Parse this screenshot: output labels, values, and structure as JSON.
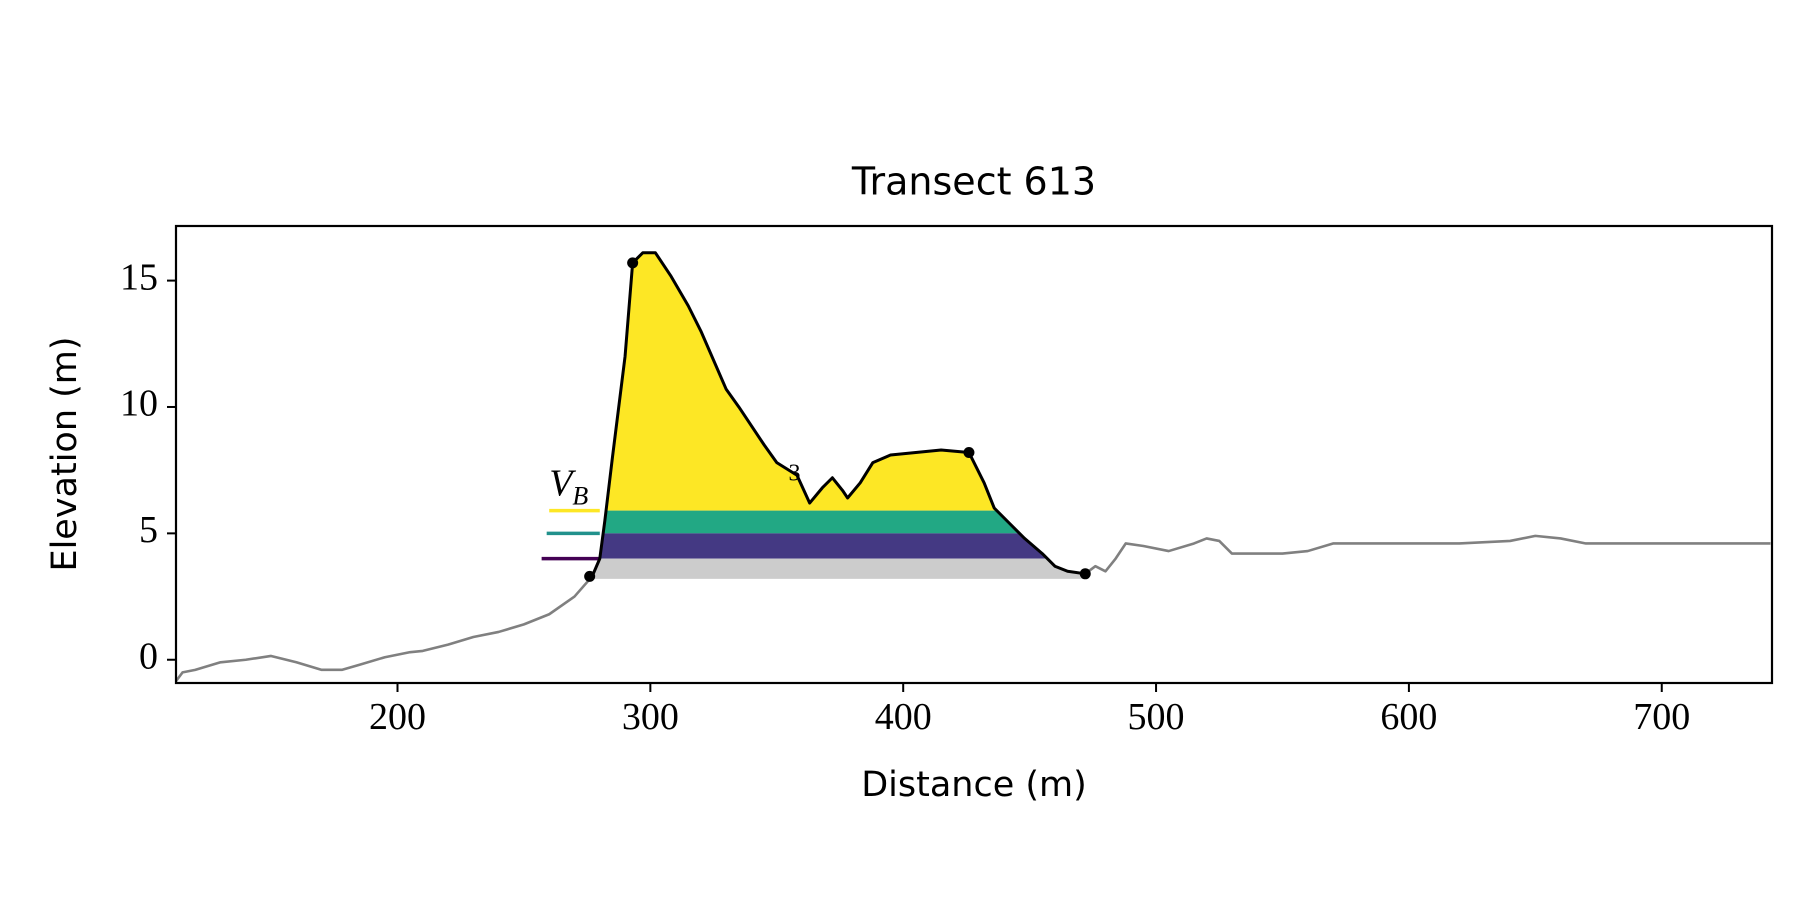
{
  "chart_data": {
    "type": "line",
    "title": "Transect 613",
    "x_label": "Distance (m)",
    "y_label": "Elevation (m)",
    "xlim": [
      112.4,
      743.6
    ],
    "ylim": [
      -0.92,
      17.16
    ],
    "xticks": [
      200,
      300,
      400,
      500,
      600,
      700
    ],
    "yticks": [
      0,
      5,
      10,
      15
    ],
    "grid": false,
    "series": [
      {
        "color": "#808080",
        "x": [
          112,
          115,
          120,
          130,
          140,
          150,
          160,
          170,
          178,
          185,
          195,
          205,
          210,
          220,
          230,
          240,
          250,
          260,
          270,
          277,
          null,
          472,
          476,
          480,
          484,
          488,
          495,
          505,
          515,
          520,
          525,
          530,
          540,
          550,
          560,
          570,
          580,
          600,
          620,
          640,
          650,
          660,
          670,
          690,
          710,
          730,
          743
        ],
        "values": [
          -0.9,
          -0.5,
          -0.4,
          -0.1,
          0.0,
          0.15,
          -0.1,
          -0.4,
          -0.4,
          -0.2,
          0.1,
          0.3,
          0.35,
          0.6,
          0.9,
          1.1,
          1.4,
          1.8,
          2.5,
          3.3,
          null,
          3.4,
          3.7,
          3.5,
          4.0,
          4.6,
          4.5,
          4.3,
          4.6,
          4.8,
          4.7,
          4.2,
          4.2,
          4.2,
          4.3,
          4.6,
          4.6,
          4.6,
          4.6,
          4.7,
          4.9,
          4.8,
          4.6,
          4.6,
          4.6,
          4.6,
          4.6
        ]
      },
      {
        "color": "#000000",
        "x": [
          277,
          280,
          282,
          285,
          290,
          293,
          297,
          302,
          308,
          315,
          320,
          330,
          335,
          345,
          350,
          358,
          363,
          368,
          372,
          376,
          378,
          383,
          388,
          395,
          405,
          415,
          426,
          432,
          436,
          442,
          448,
          455,
          460,
          465,
          472
        ],
        "values": [
          3.3,
          4.0,
          5.5,
          8.0,
          12.0,
          15.7,
          16.1,
          16.1,
          15.2,
          14.0,
          13.0,
          10.7,
          10.0,
          8.5,
          7.8,
          7.3,
          6.2,
          6.8,
          7.2,
          6.7,
          6.4,
          7.0,
          7.8,
          8.1,
          8.2,
          8.3,
          8.2,
          7.0,
          6.0,
          5.4,
          4.8,
          4.2,
          3.7,
          3.5,
          3.4
        ]
      }
    ],
    "markers": {
      "color": "#000000",
      "x": [
        276,
        293,
        426,
        472
      ],
      "values": [
        3.3,
        15.7,
        8.2,
        3.4
      ]
    },
    "levels": [
      {
        "value": 5.9,
        "color": "#fde725",
        "fill": "#fde725"
      },
      {
        "value": 5.0,
        "color": "#21918c",
        "fill": "#22a884"
      },
      {
        "value": 4.0,
        "color": "#440154",
        "fill": "#443983"
      }
    ],
    "base": {
      "value": 3.2,
      "fill": "#cccccc"
    },
    "annotations": [
      {
        "text": "V",
        "sub": "B",
        "x": 260,
        "y": 6.5
      },
      {
        "text": "3",
        "x": 357,
        "y": 7.1
      }
    ]
  }
}
